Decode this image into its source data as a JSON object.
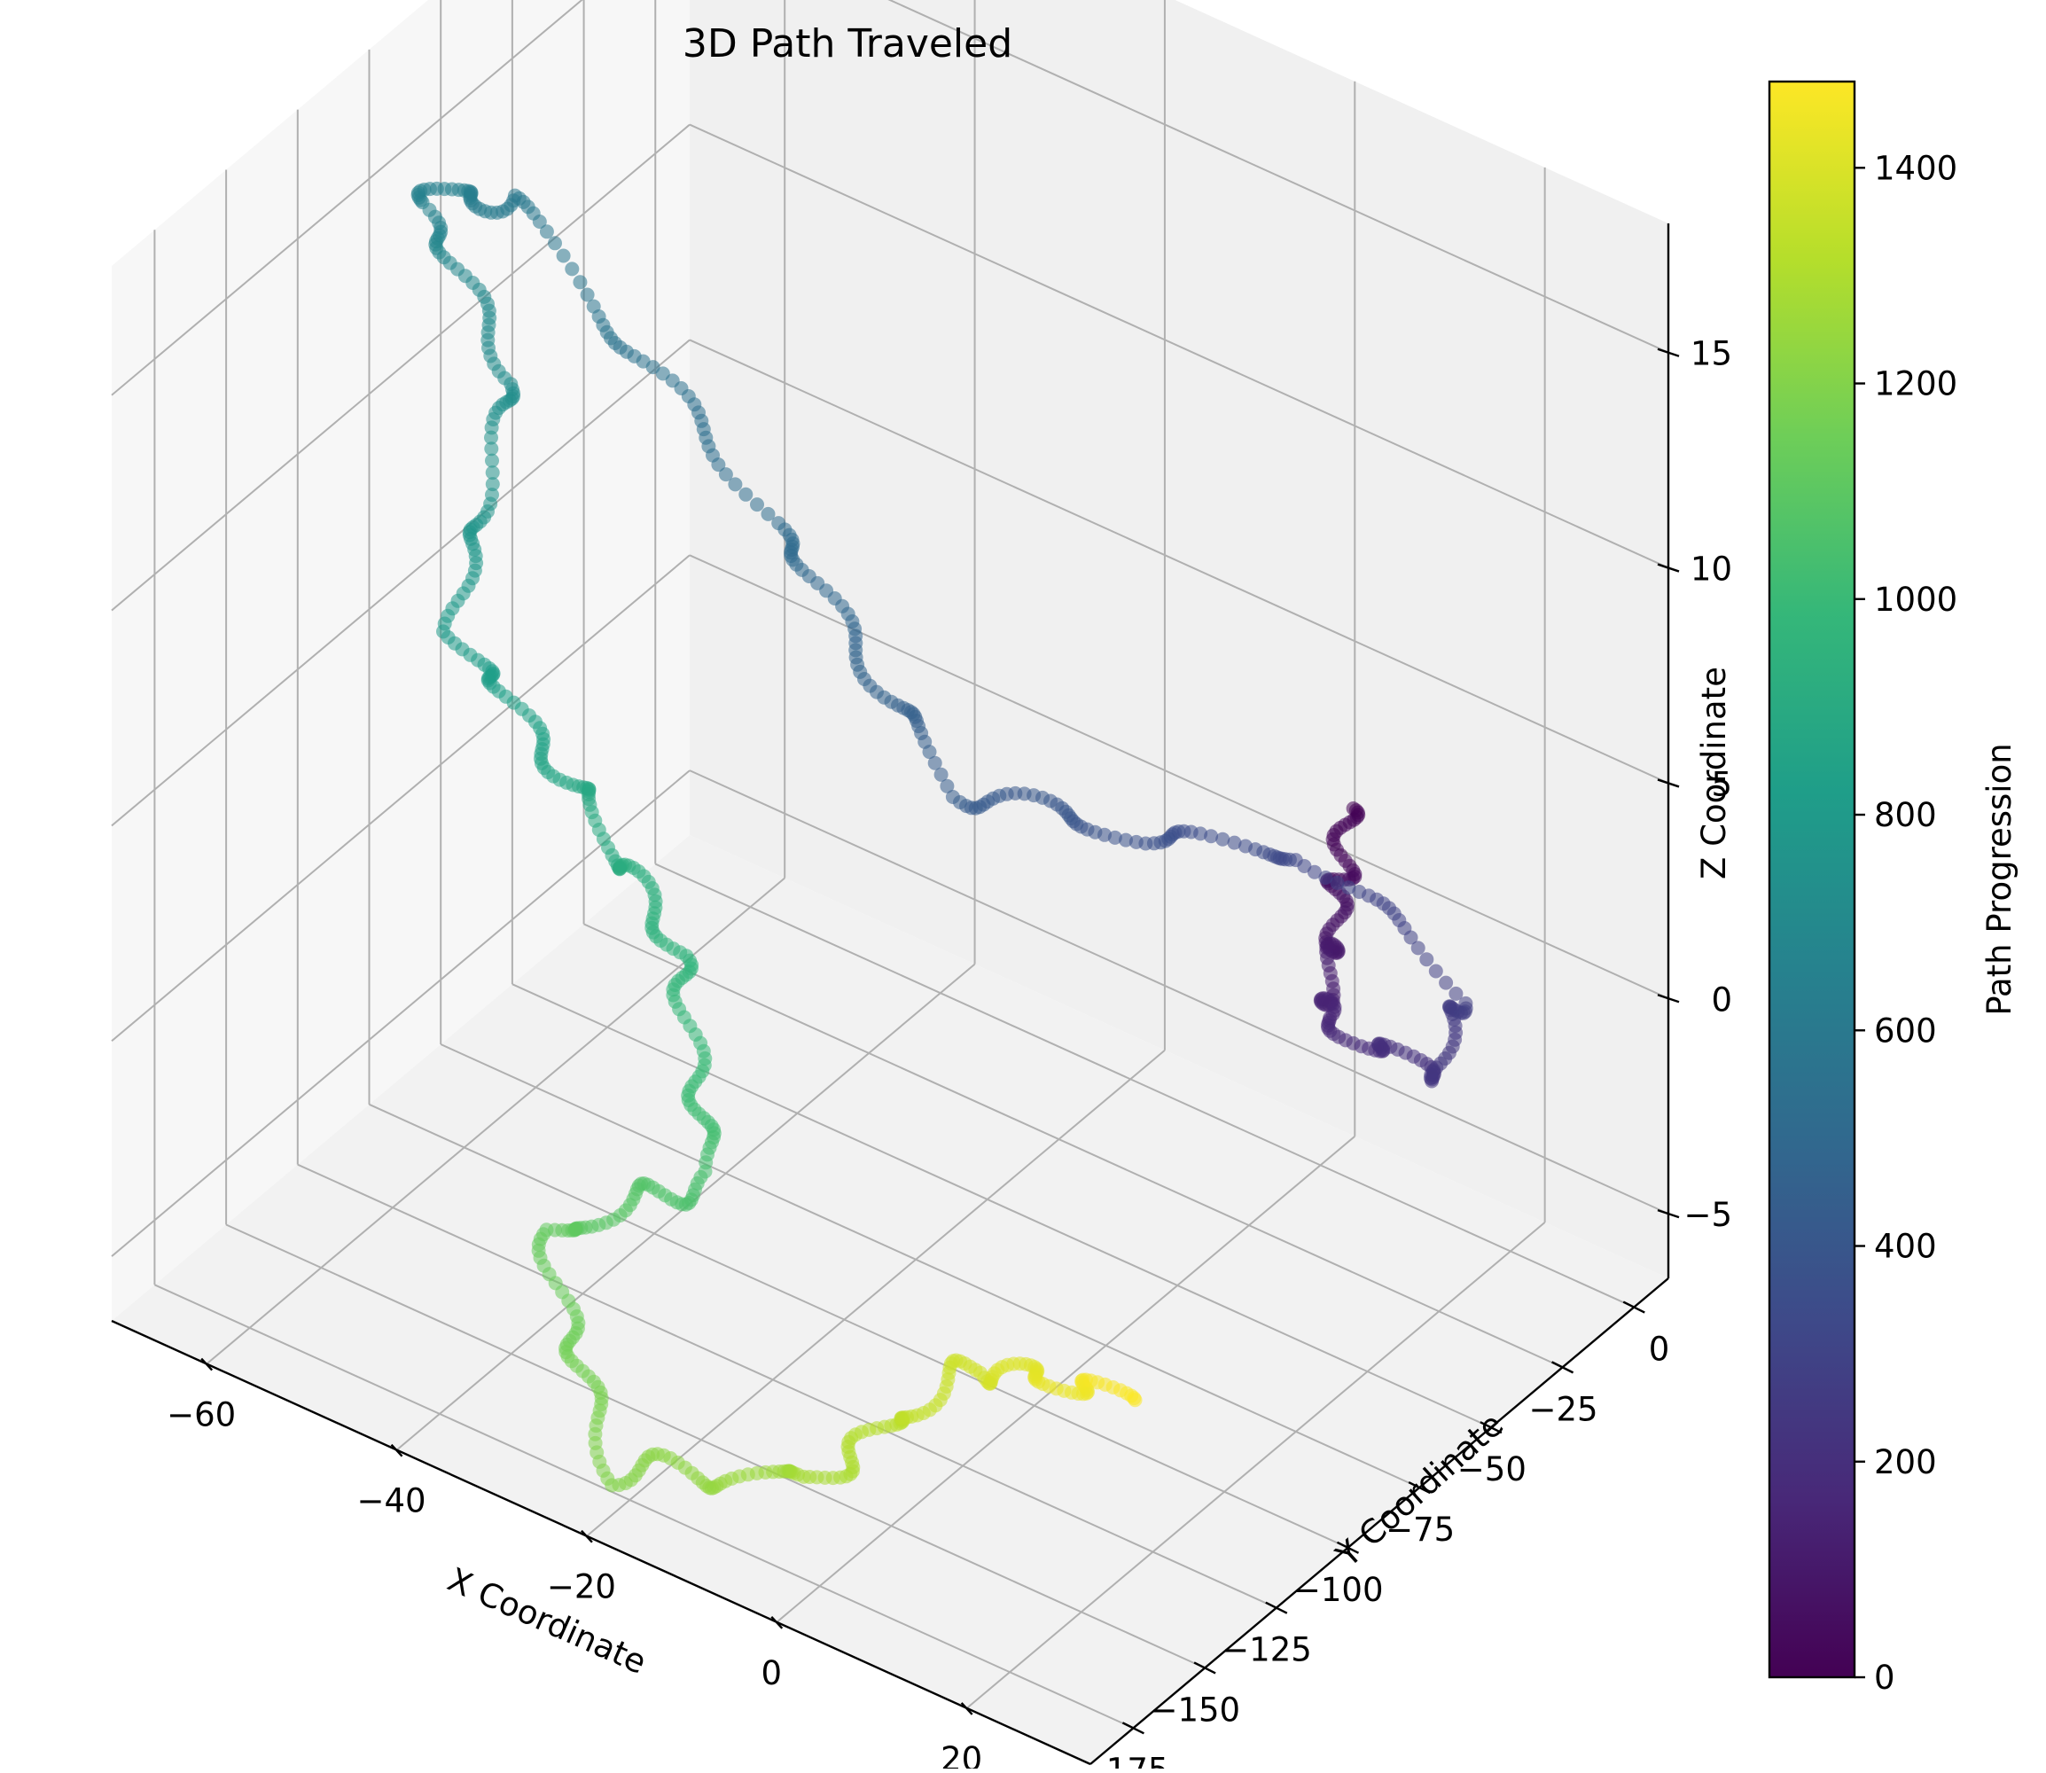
{
  "chart_data": {
    "type": "scatter",
    "title": "3D Path Traveled",
    "xlabel": "X Coordinate",
    "ylabel": "Y Coordinate",
    "zlabel": "Z Coordinate",
    "colorbar_label": "Path Progression",
    "xlim": [
      -70,
      33
    ],
    "ylim": [
      -190,
      12
    ],
    "zlim": [
      -6.5,
      18
    ],
    "x_ticks": [
      "−60",
      "−40",
      "−20",
      "0",
      "20"
    ],
    "y_ticks": [
      "0",
      "−25",
      "−50",
      "−75",
      "−100",
      "−125",
      "−150",
      "−175"
    ],
    "z_ticks": [
      "15",
      "10",
      "5",
      "0",
      "−5"
    ],
    "colorbar_ticks": [
      "0",
      "200",
      "400",
      "600",
      "800",
      "1000",
      "1200",
      "1400"
    ],
    "colorbar_range": [
      0,
      1480
    ],
    "colormap": "viridis",
    "grid": true,
    "path": {
      "point_count": 1480,
      "keypoints": [
        {
          "progression": 0,
          "x": 3,
          "y": 0,
          "z": 2.0
        },
        {
          "progression": 80,
          "x": 6,
          "y": -15,
          "z": 0.5
        },
        {
          "progression": 160,
          "x": 8,
          "y": -25,
          "z": -1.0
        },
        {
          "progression": 230,
          "x": 20,
          "y": -25,
          "z": -1.0
        },
        {
          "progression": 280,
          "x": 18,
          "y": -10,
          "z": 0.0
        },
        {
          "progression": 320,
          "x": 0,
          "y": -5,
          "z": 1.0
        },
        {
          "progression": 370,
          "x": -15,
          "y": -15,
          "z": 0.5
        },
        {
          "progression": 430,
          "x": -30,
          "y": -30,
          "z": 1.0
        },
        {
          "progression": 520,
          "x": -40,
          "y": -60,
          "z": 8.0
        },
        {
          "progression": 600,
          "x": -55,
          "y": -100,
          "z": 16.0
        },
        {
          "progression": 660,
          "x": -62,
          "y": -110,
          "z": 16.0
        },
        {
          "progression": 720,
          "x": -55,
          "y": -100,
          "z": 12.0
        },
        {
          "progression": 800,
          "x": -52,
          "y": -130,
          "z": 8.0
        },
        {
          "progression": 880,
          "x": -40,
          "y": -125,
          "z": 5.0
        },
        {
          "progression": 960,
          "x": -30,
          "y": -125,
          "z": 2.5
        },
        {
          "progression": 1040,
          "x": -25,
          "y": -130,
          "z": -2.0
        },
        {
          "progression": 1120,
          "x": -35,
          "y": -155,
          "z": -3.0
        },
        {
          "progression": 1200,
          "x": -22,
          "y": -175,
          "z": -6.0
        },
        {
          "progression": 1280,
          "x": -2,
          "y": -170,
          "z": -4.5
        },
        {
          "progression": 1380,
          "x": 12,
          "y": -160,
          "z": -1.0
        },
        {
          "progression": 1480,
          "x": 25,
          "y": -150,
          "z": -1.0
        }
      ]
    }
  }
}
